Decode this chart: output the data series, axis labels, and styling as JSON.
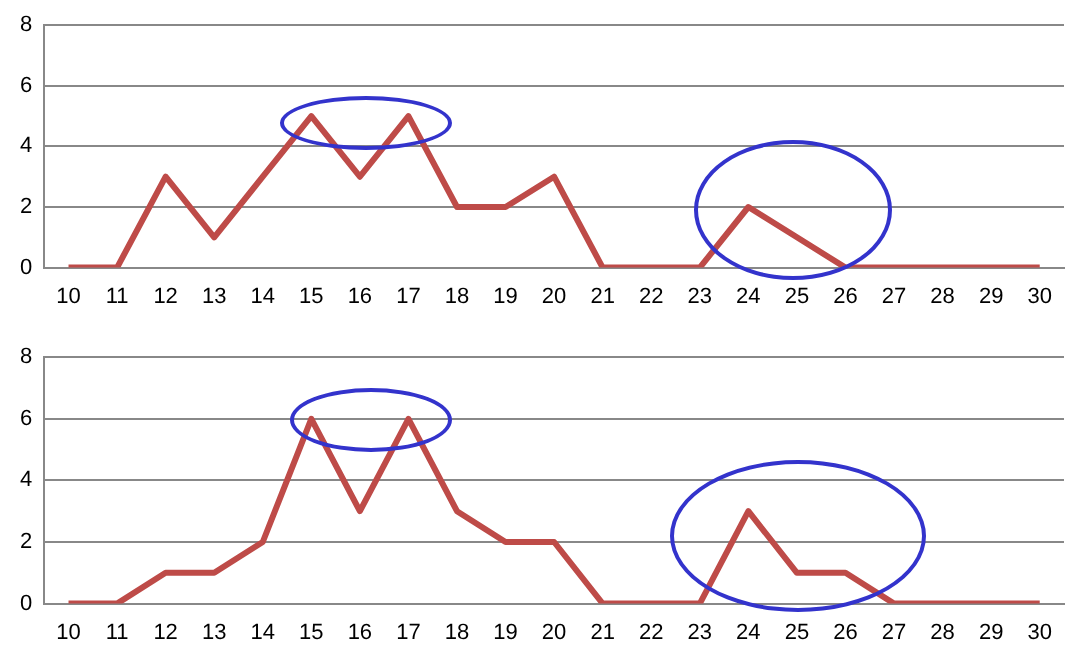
{
  "chart_data": [
    {
      "type": "line",
      "categories": [
        "10",
        "11",
        "12",
        "13",
        "14",
        "15",
        "16",
        "17",
        "18",
        "19",
        "20",
        "21",
        "22",
        "23",
        "24",
        "25",
        "26",
        "27",
        "28",
        "29",
        "30"
      ],
      "values": [
        0,
        0,
        3,
        1,
        3,
        5,
        3,
        5,
        2,
        2,
        3,
        0,
        0,
        0,
        2,
        1,
        0,
        0,
        0,
        0,
        0
      ],
      "color": "#be4b48",
      "ylim": [
        0,
        8
      ],
      "yticks": [
        0,
        2,
        4,
        6,
        8
      ],
      "grid": "y",
      "marker": "none"
    },
    {
      "type": "line",
      "categories": [
        "10",
        "11",
        "12",
        "13",
        "14",
        "15",
        "16",
        "17",
        "18",
        "19",
        "20",
        "21",
        "22",
        "23",
        "24",
        "25",
        "26",
        "27",
        "28",
        "29",
        "30"
      ],
      "values": [
        0,
        0,
        1,
        1,
        2,
        6,
        3,
        6,
        3,
        2,
        2,
        0,
        0,
        0,
        3,
        1,
        1,
        0,
        0,
        0,
        0
      ],
      "color": "#be4b48",
      "ylim": [
        0,
        8
      ],
      "yticks": [
        0,
        2,
        4,
        6,
        8
      ],
      "grid": "y",
      "marker": "none"
    }
  ]
}
